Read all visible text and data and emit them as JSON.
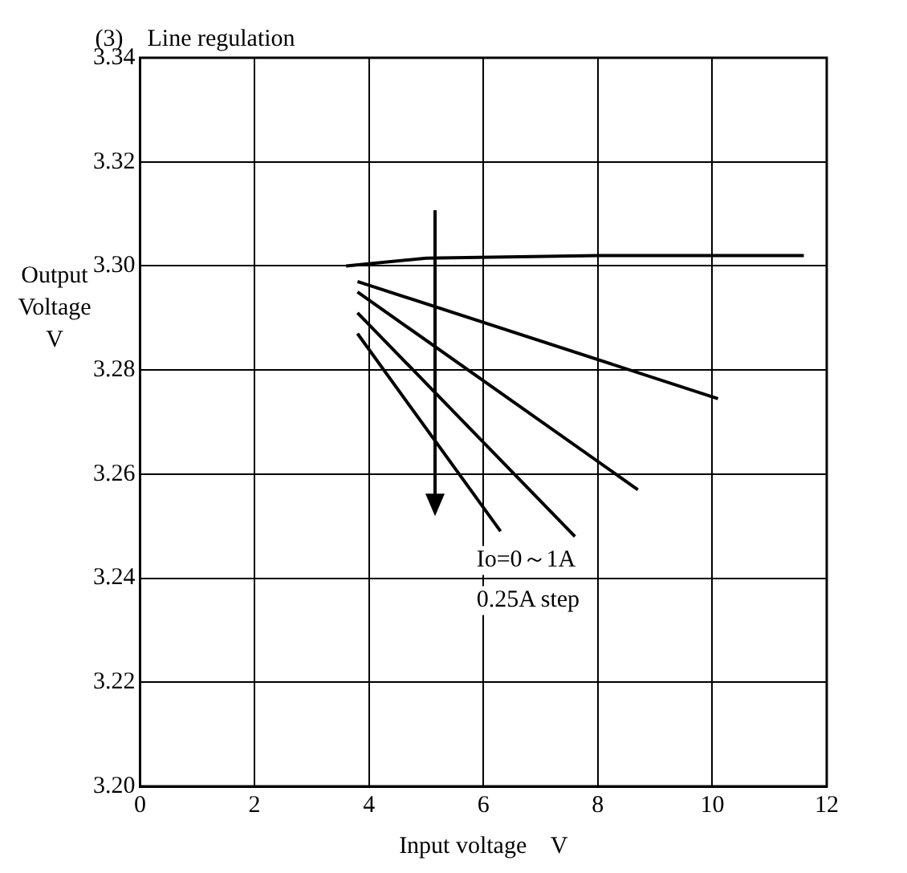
{
  "chart_data": {
    "type": "line",
    "title": "(3)    Line regulation",
    "xlabel": "Input voltage    V",
    "ylabel": "Output Voltage V",
    "annotations": [
      "Io=0～1A",
      "0.25A step"
    ],
    "series": [
      {
        "color": "#000000",
        "x": [
          3.6,
          5,
          8,
          11.6
        ],
        "values": [
          3.3,
          3.3015,
          3.302,
          3.302
        ]
      },
      {
        "color": "#000000",
        "x": [
          3.8,
          10.1
        ],
        "values": [
          3.297,
          3.2745
        ]
      },
      {
        "color": "#000000",
        "x": [
          3.8,
          8.7
        ],
        "values": [
          3.295,
          3.257
        ]
      },
      {
        "color": "#000000",
        "x": [
          3.8,
          7.6
        ],
        "values": [
          3.291,
          3.248
        ]
      },
      {
        "color": "#000000",
        "x": [
          3.8,
          6.3
        ],
        "values": [
          3.287,
          3.249
        ]
      }
    ],
    "xlim": [
      0,
      12
    ],
    "xticks": [
      0,
      2,
      4,
      6,
      8,
      10,
      12
    ],
    "ylim": [
      3.2,
      3.34
    ],
    "yticks": [
      {
        "value": 3.2,
        "label": "3.20"
      },
      3.22,
      3.24,
      3.26,
      3.28,
      {
        "value": 3.3,
        "label": "3.30"
      },
      3.32,
      3.34
    ],
    "grid": true,
    "legend": false,
    "marker": "none",
    "line_style": "solid"
  }
}
